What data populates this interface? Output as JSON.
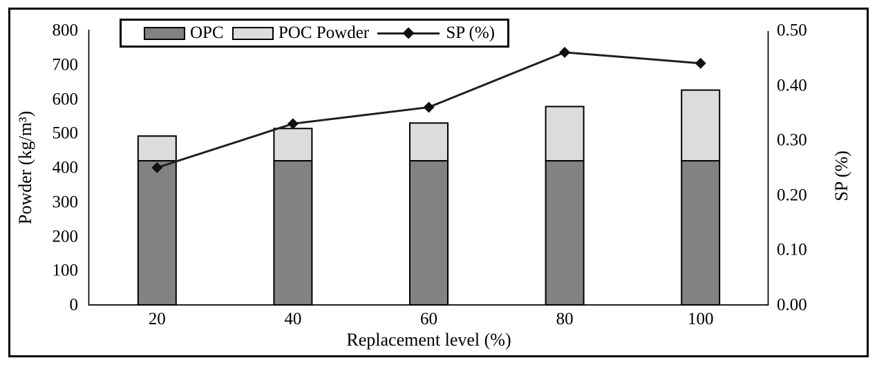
{
  "chart_data": {
    "type": "bar",
    "subtype": "stacked-bars-with-secondary-axis-line",
    "title": "",
    "categories": [
      "20",
      "40",
      "60",
      "80",
      "100"
    ],
    "x_axis": {
      "label": "Replacement level (%)"
    },
    "y_axis_left": {
      "label": "Powder (kg/m³)",
      "min": 0,
      "max": 800,
      "tick_step": 100,
      "tick_labels": [
        "0",
        "100",
        "200",
        "300",
        "400",
        "500",
        "600",
        "700",
        "800"
      ]
    },
    "y_axis_right": {
      "label": "SP (%)",
      "min": 0.0,
      "max": 0.5,
      "tick_step": 0.1,
      "tick_labels": [
        "0.00",
        "0.10",
        "0.20",
        "0.30",
        "0.40",
        "0.50"
      ]
    },
    "series": [
      {
        "name": "OPC",
        "kind": "bar-stack",
        "color": "#828282",
        "values": [
          420,
          420,
          420,
          420,
          420
        ]
      },
      {
        "name": "POC Powder",
        "kind": "bar-stack",
        "color": "#dcdcdc",
        "values": [
          72,
          94,
          110,
          158,
          206
        ]
      },
      {
        "name": "SP (%)",
        "kind": "line",
        "axis": "right",
        "color": "#1f1f1f",
        "marker": "diamond",
        "marker_color": "#111111",
        "values": [
          0.25,
          0.33,
          0.36,
          0.46,
          0.44
        ]
      }
    ],
    "stacked_bar_totals": [
      492,
      514,
      530,
      578,
      626
    ],
    "legend_position": "top-center",
    "grid": false,
    "colors": {
      "axis": "#000000",
      "frame": "#000000",
      "background": "#ffffff"
    }
  }
}
